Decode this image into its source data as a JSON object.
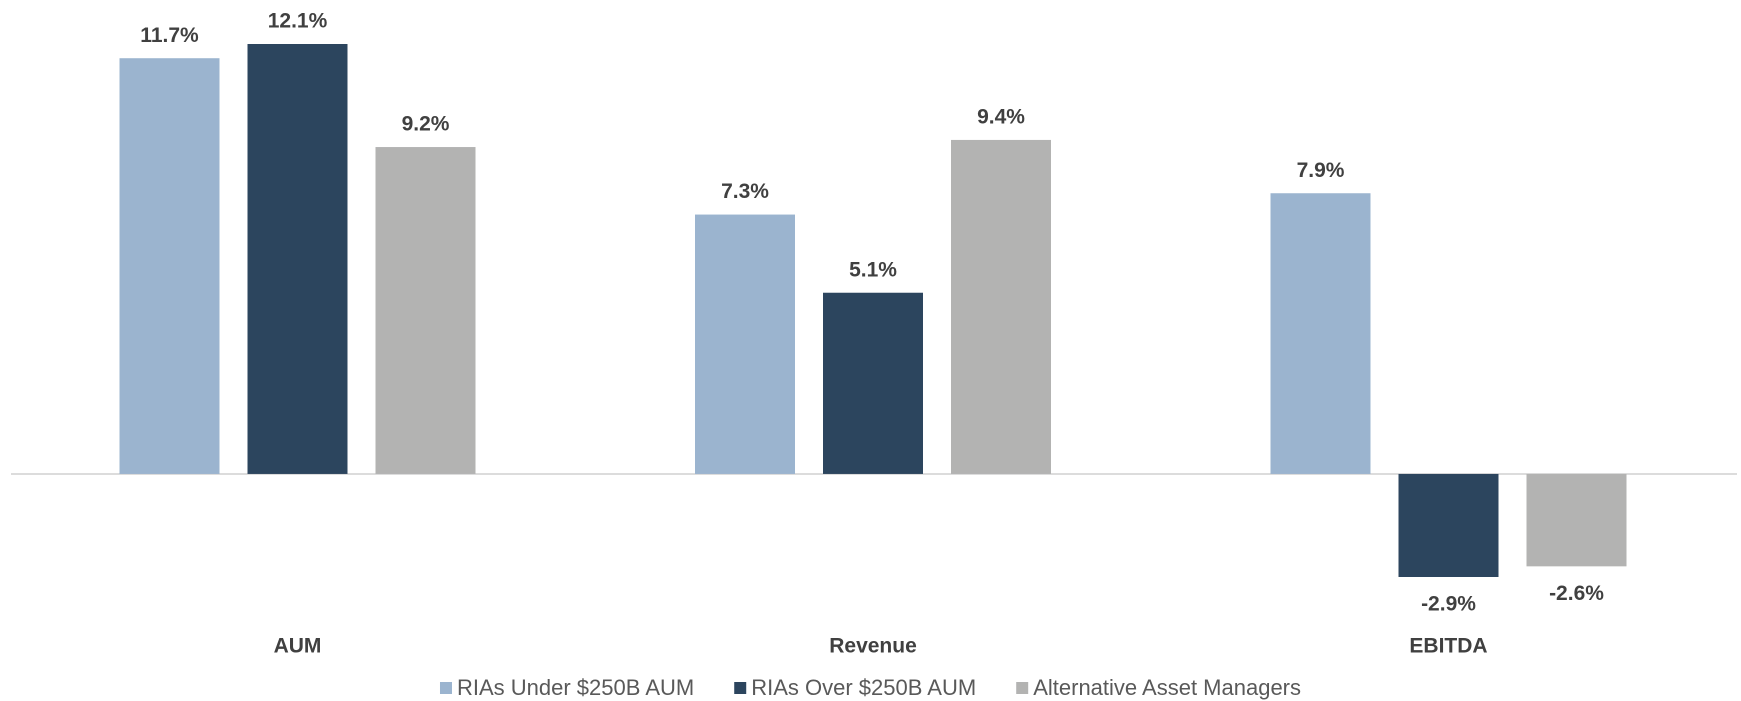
{
  "chart_data": {
    "type": "bar",
    "categories": [
      "AUM",
      "Revenue",
      "EBITDA"
    ],
    "series": [
      {
        "name": "RIAs Under $250B AUM",
        "color": "#9bb4cf",
        "values": [
          11.7,
          7.3,
          7.9
        ],
        "value_labels": [
          "11.7%",
          "7.3%",
          "7.9%"
        ]
      },
      {
        "name": "RIAs Over $250B AUM",
        "color": "#2c455e",
        "values": [
          12.1,
          5.1,
          -2.9
        ],
        "value_labels": [
          "12.1%",
          "5.1%",
          "-2.9%"
        ]
      },
      {
        "name": "Alternative Asset Managers",
        "color": "#b3b3b2",
        "values": [
          9.2,
          9.4,
          -2.6
        ],
        "value_labels": [
          "9.2%",
          "9.4%",
          "-2.6%"
        ]
      }
    ],
    "legend": "bottom"
  }
}
